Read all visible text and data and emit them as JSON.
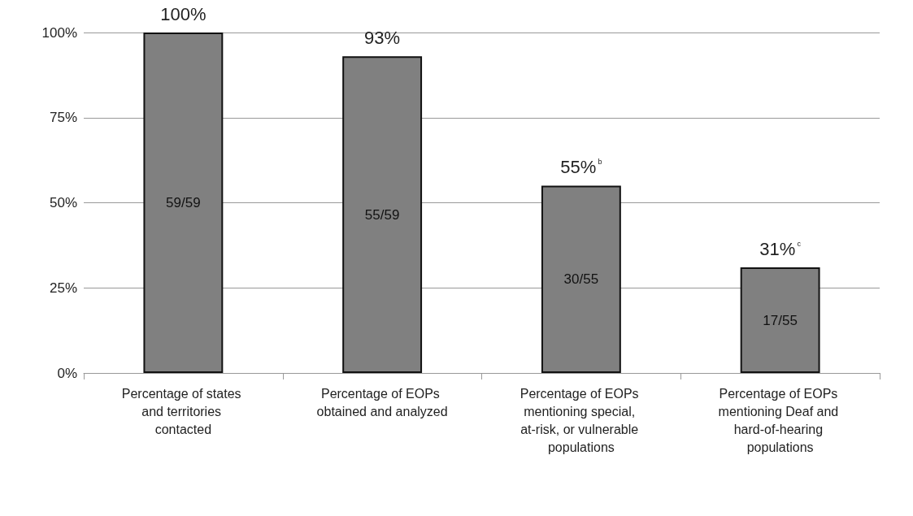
{
  "chart_data": {
    "type": "bar",
    "categories": [
      "Percentage of states and territories contacted",
      "Percentage of EOPs obtained and analyzed",
      "Percentage of EOPs mentioning special, at-risk, or vulnerable populations",
      "Percentage of EOPs mentioning Deaf and hard-of-hearing populations"
    ],
    "values": [
      100,
      93,
      55,
      31
    ],
    "color": "#808080",
    "value_labels": [
      "100%",
      "93%",
      "55%$^{b}$",
      "31%$^{c}$"
    ],
    "ylim": [
      0,
      100
    ],
    "yticks": [
      {
        "value": 0,
        "label": "0%"
      },
      {
        "value": 25,
        "label": "25%"
      },
      {
        "value": 50,
        "label": "50%"
      },
      {
        "value": 75,
        "label": "75%"
      },
      {
        "value": 100,
        "label": "100%"
      }
    ],
    "grid": "y",
    "annotations": [
      "59/59",
      "55/59",
      "30/55",
      "17/55"
    ]
  }
}
